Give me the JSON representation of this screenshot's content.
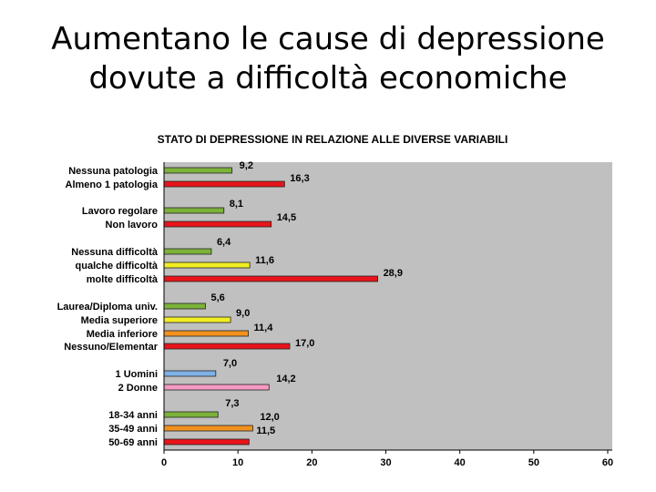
{
  "slide": {
    "title_line1": "Aumentano le cause di depressione",
    "title_line2": "dovute a difficoltà economiche"
  },
  "chart_data": {
    "type": "bar",
    "orientation": "horizontal",
    "title": "STATO DI DEPRESSIONE IN RELAZIONE ALLE DIVERSE VARIABILI",
    "xlim": [
      0,
      60
    ],
    "xticks": [
      0,
      10,
      20,
      30,
      40,
      50,
      60
    ],
    "grid": false,
    "legend": "none",
    "plot_background": "#c0c0c0",
    "bars": [
      {
        "label": "Nessuna patologia",
        "value": 9.2,
        "value_label": "9,2",
        "color": "#7cb23a"
      },
      {
        "label": "Almeno 1 patologia",
        "value": 16.3,
        "value_label": "16,3",
        "color": "#e8141a"
      },
      {
        "label": "Lavoro regolare",
        "value": 8.1,
        "value_label": "8,1",
        "color": "#7cb23a"
      },
      {
        "label": "Non lavoro",
        "value": 14.5,
        "value_label": "14,5",
        "color": "#e8141a"
      },
      {
        "label": "Nessuna difficoltà",
        "value": 6.4,
        "value_label": "6,4",
        "color": "#7cb23a"
      },
      {
        "label": "qualche difficoltà",
        "value": 11.6,
        "value_label": "11,6",
        "color": "#f2ee24"
      },
      {
        "label": "molte difficoltà",
        "value": 28.9,
        "value_label": "28,9",
        "color": "#e8141a"
      },
      {
        "label": "Laurea/Diploma univ.",
        "value": 5.6,
        "value_label": "5,6",
        "color": "#7cb23a"
      },
      {
        "label": "Media superiore",
        "value": 9.0,
        "value_label": "9,0",
        "color": "#f2ee24"
      },
      {
        "label": "Media inferiore",
        "value": 11.4,
        "value_label": "11,4",
        "color": "#f2921e"
      },
      {
        "label": "Nessuno/Elementar",
        "value": 17.0,
        "value_label": "17,0",
        "color": "#e8141a"
      },
      {
        "label": "1 Uomini",
        "value": 7.0,
        "value_label": "7,0",
        "color": "#7fb2e6"
      },
      {
        "label": "2 Donne",
        "value": 14.2,
        "value_label": "14,2",
        "color": "#f59ac2"
      },
      {
        "label": "18-34 anni",
        "value": 7.3,
        "value_label": "7,3",
        "color": "#7cb23a"
      },
      {
        "label": "35-49 anni",
        "value": 12.0,
        "value_label": "12,0",
        "color": "#f2921e"
      },
      {
        "label": "50-69 anni",
        "value": 11.5,
        "value_label": "11,5",
        "color": "#e8141a"
      }
    ]
  }
}
